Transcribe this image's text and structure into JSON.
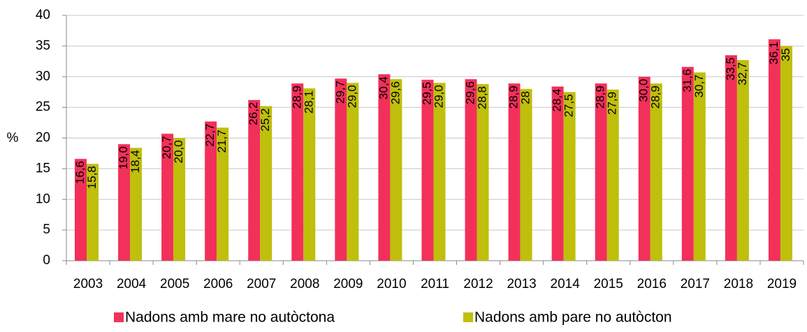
{
  "chart_data": {
    "type": "bar",
    "y_label": "%",
    "categories": [
      "2003",
      "2004",
      "2005",
      "2006",
      "2007",
      "2008",
      "2009",
      "2010",
      "2011",
      "2012",
      "2013",
      "2014",
      "2015",
      "2016",
      "2017",
      "2018",
      "2019"
    ],
    "series": [
      {
        "name": "Nadons amb mare no autòctona",
        "color": "#f2305a",
        "values": [
          16.6,
          19.0,
          20.7,
          22.7,
          26.2,
          28.9,
          29.7,
          30.4,
          29.5,
          29.6,
          28.9,
          28.4,
          28.9,
          30.0,
          31.6,
          33.5,
          36.1
        ],
        "value_labels": [
          "16,6",
          "19,0",
          "20,7",
          "22,7",
          "26,2",
          "28,9",
          "29,7",
          "30,4",
          "29,5",
          "29,6",
          "28,9",
          "28,4",
          "28,9",
          "30,0",
          "31,6",
          "33,5",
          "36,1"
        ]
      },
      {
        "name": "Nadons amb pare no autòcton",
        "color": "#bfbf0c",
        "values": [
          15.8,
          18.4,
          20.0,
          21.7,
          25.2,
          28.1,
          29.0,
          29.6,
          29.0,
          28.8,
          28,
          27.5,
          27.9,
          28.9,
          30.7,
          32.7,
          35
        ],
        "value_labels": [
          "15,8",
          "18,4",
          "20,0",
          "21,7",
          "25,2",
          "28,1",
          "29,0",
          "29,6",
          "29,0",
          "28,8",
          "28",
          "27,5",
          "27,9",
          "28,9",
          "30,7",
          "32,7",
          "35"
        ]
      }
    ],
    "ylim": [
      0,
      40
    ],
    "yticks": [
      0,
      5,
      10,
      15,
      20,
      25,
      30,
      35,
      40
    ],
    "grid": true,
    "legend": "bottom"
  }
}
